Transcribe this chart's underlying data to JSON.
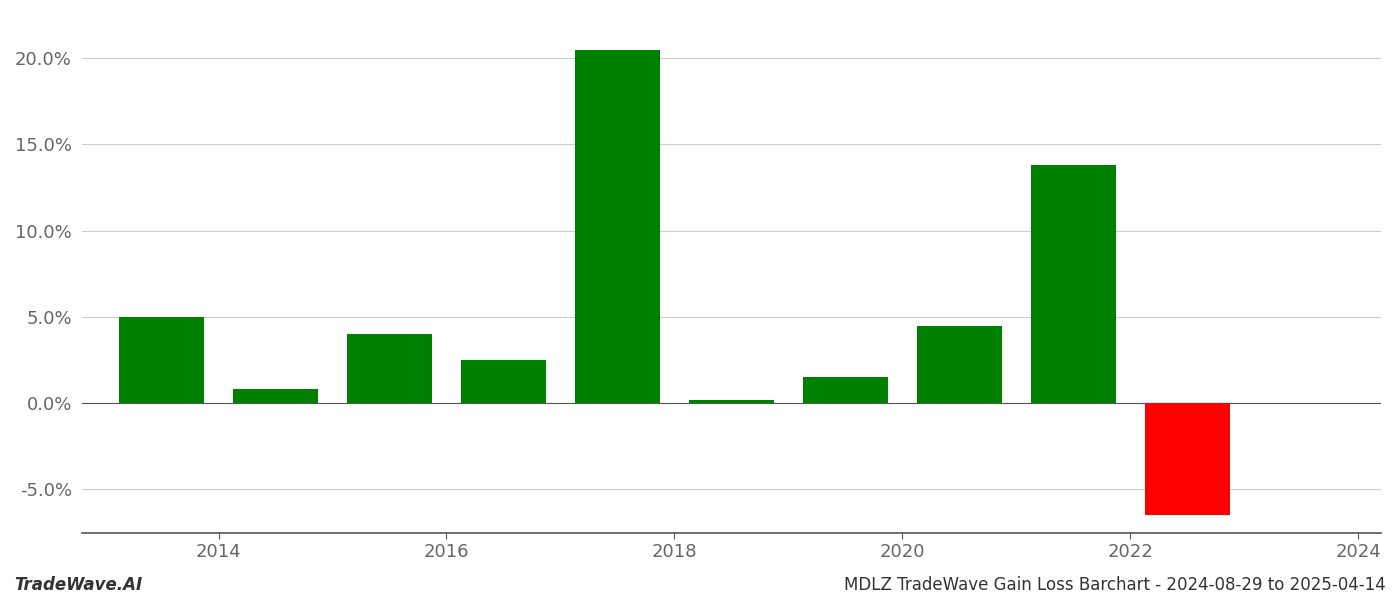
{
  "years": [
    2013.5,
    2014.5,
    2015.5,
    2016.5,
    2017.5,
    2018.5,
    2019.5,
    2020.5,
    2021.5,
    2022.5
  ],
  "values": [
    5.0,
    0.8,
    4.0,
    2.5,
    20.5,
    0.2,
    1.5,
    4.5,
    13.8,
    -6.5
  ],
  "colors": [
    "#008000",
    "#008000",
    "#008000",
    "#008000",
    "#008000",
    "#008000",
    "#008000",
    "#008000",
    "#008000",
    "#ff0000"
  ],
  "ylim": [
    -7.5,
    22.5
  ],
  "yticks": [
    -5.0,
    0.0,
    5.0,
    10.0,
    15.0,
    20.0
  ],
  "xtick_labels": [
    "2014",
    "2016",
    "2018",
    "2020",
    "2022",
    "2024"
  ],
  "xtick_positions": [
    2014,
    2016,
    2018,
    2020,
    2022,
    2024
  ],
  "xlim": [
    2012.8,
    2024.2
  ],
  "background_color": "#ffffff",
  "grid_color": "#cccccc",
  "bar_width": 0.75,
  "footer_left": "TradeWave.AI",
  "footer_right": "MDLZ TradeWave Gain Loss Barchart - 2024-08-29 to 2025-04-14",
  "axis_fontsize": 13,
  "footer_fontsize": 12
}
